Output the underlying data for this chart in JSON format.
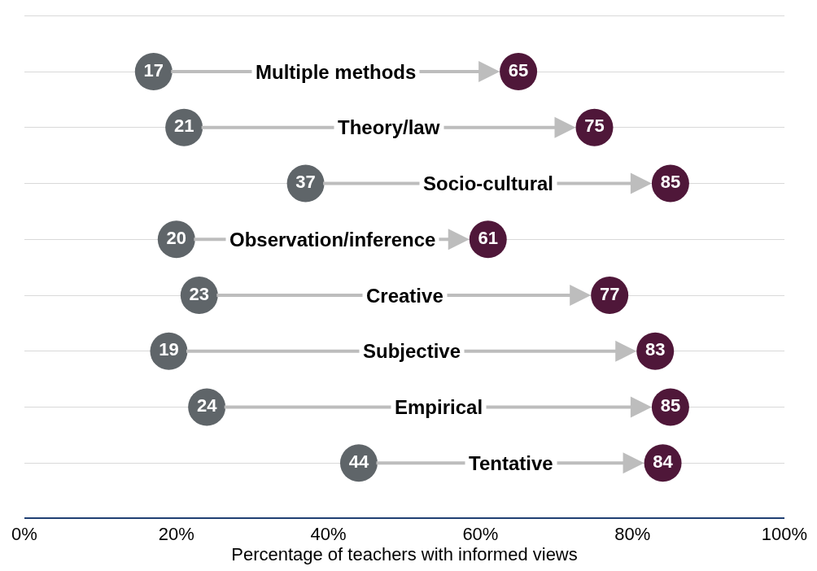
{
  "chart_data": {
    "type": "scatter",
    "orientation": "horizontal",
    "xlabel": "Percentage of teachers with informed views",
    "categories": [
      "Multiple methods",
      "Theory/law",
      "Socio-cultural",
      "Observation/inference",
      "Creative",
      "Subjective",
      "Empirical",
      "Tentative"
    ],
    "series": [
      {
        "color": "#5f6569",
        "values": [
          17,
          21,
          37,
          20,
          23,
          19,
          24,
          44
        ]
      },
      {
        "color": "#4f1739",
        "values": [
          65,
          75,
          85,
          61,
          77,
          83,
          85,
          84
        ]
      }
    ],
    "xlim": [
      0,
      100
    ],
    "xticks": [
      {
        "value": 0,
        "label": "0%"
      },
      {
        "value": 20,
        "label": "20%"
      },
      {
        "value": 40,
        "label": "40%"
      },
      {
        "value": 60,
        "label": "60%"
      },
      {
        "value": 80,
        "label": "80%"
      },
      {
        "value": 100,
        "label": "100%"
      }
    ],
    "grid": "y",
    "marker": "circle",
    "data_labels": true,
    "tick_labels": "x"
  }
}
